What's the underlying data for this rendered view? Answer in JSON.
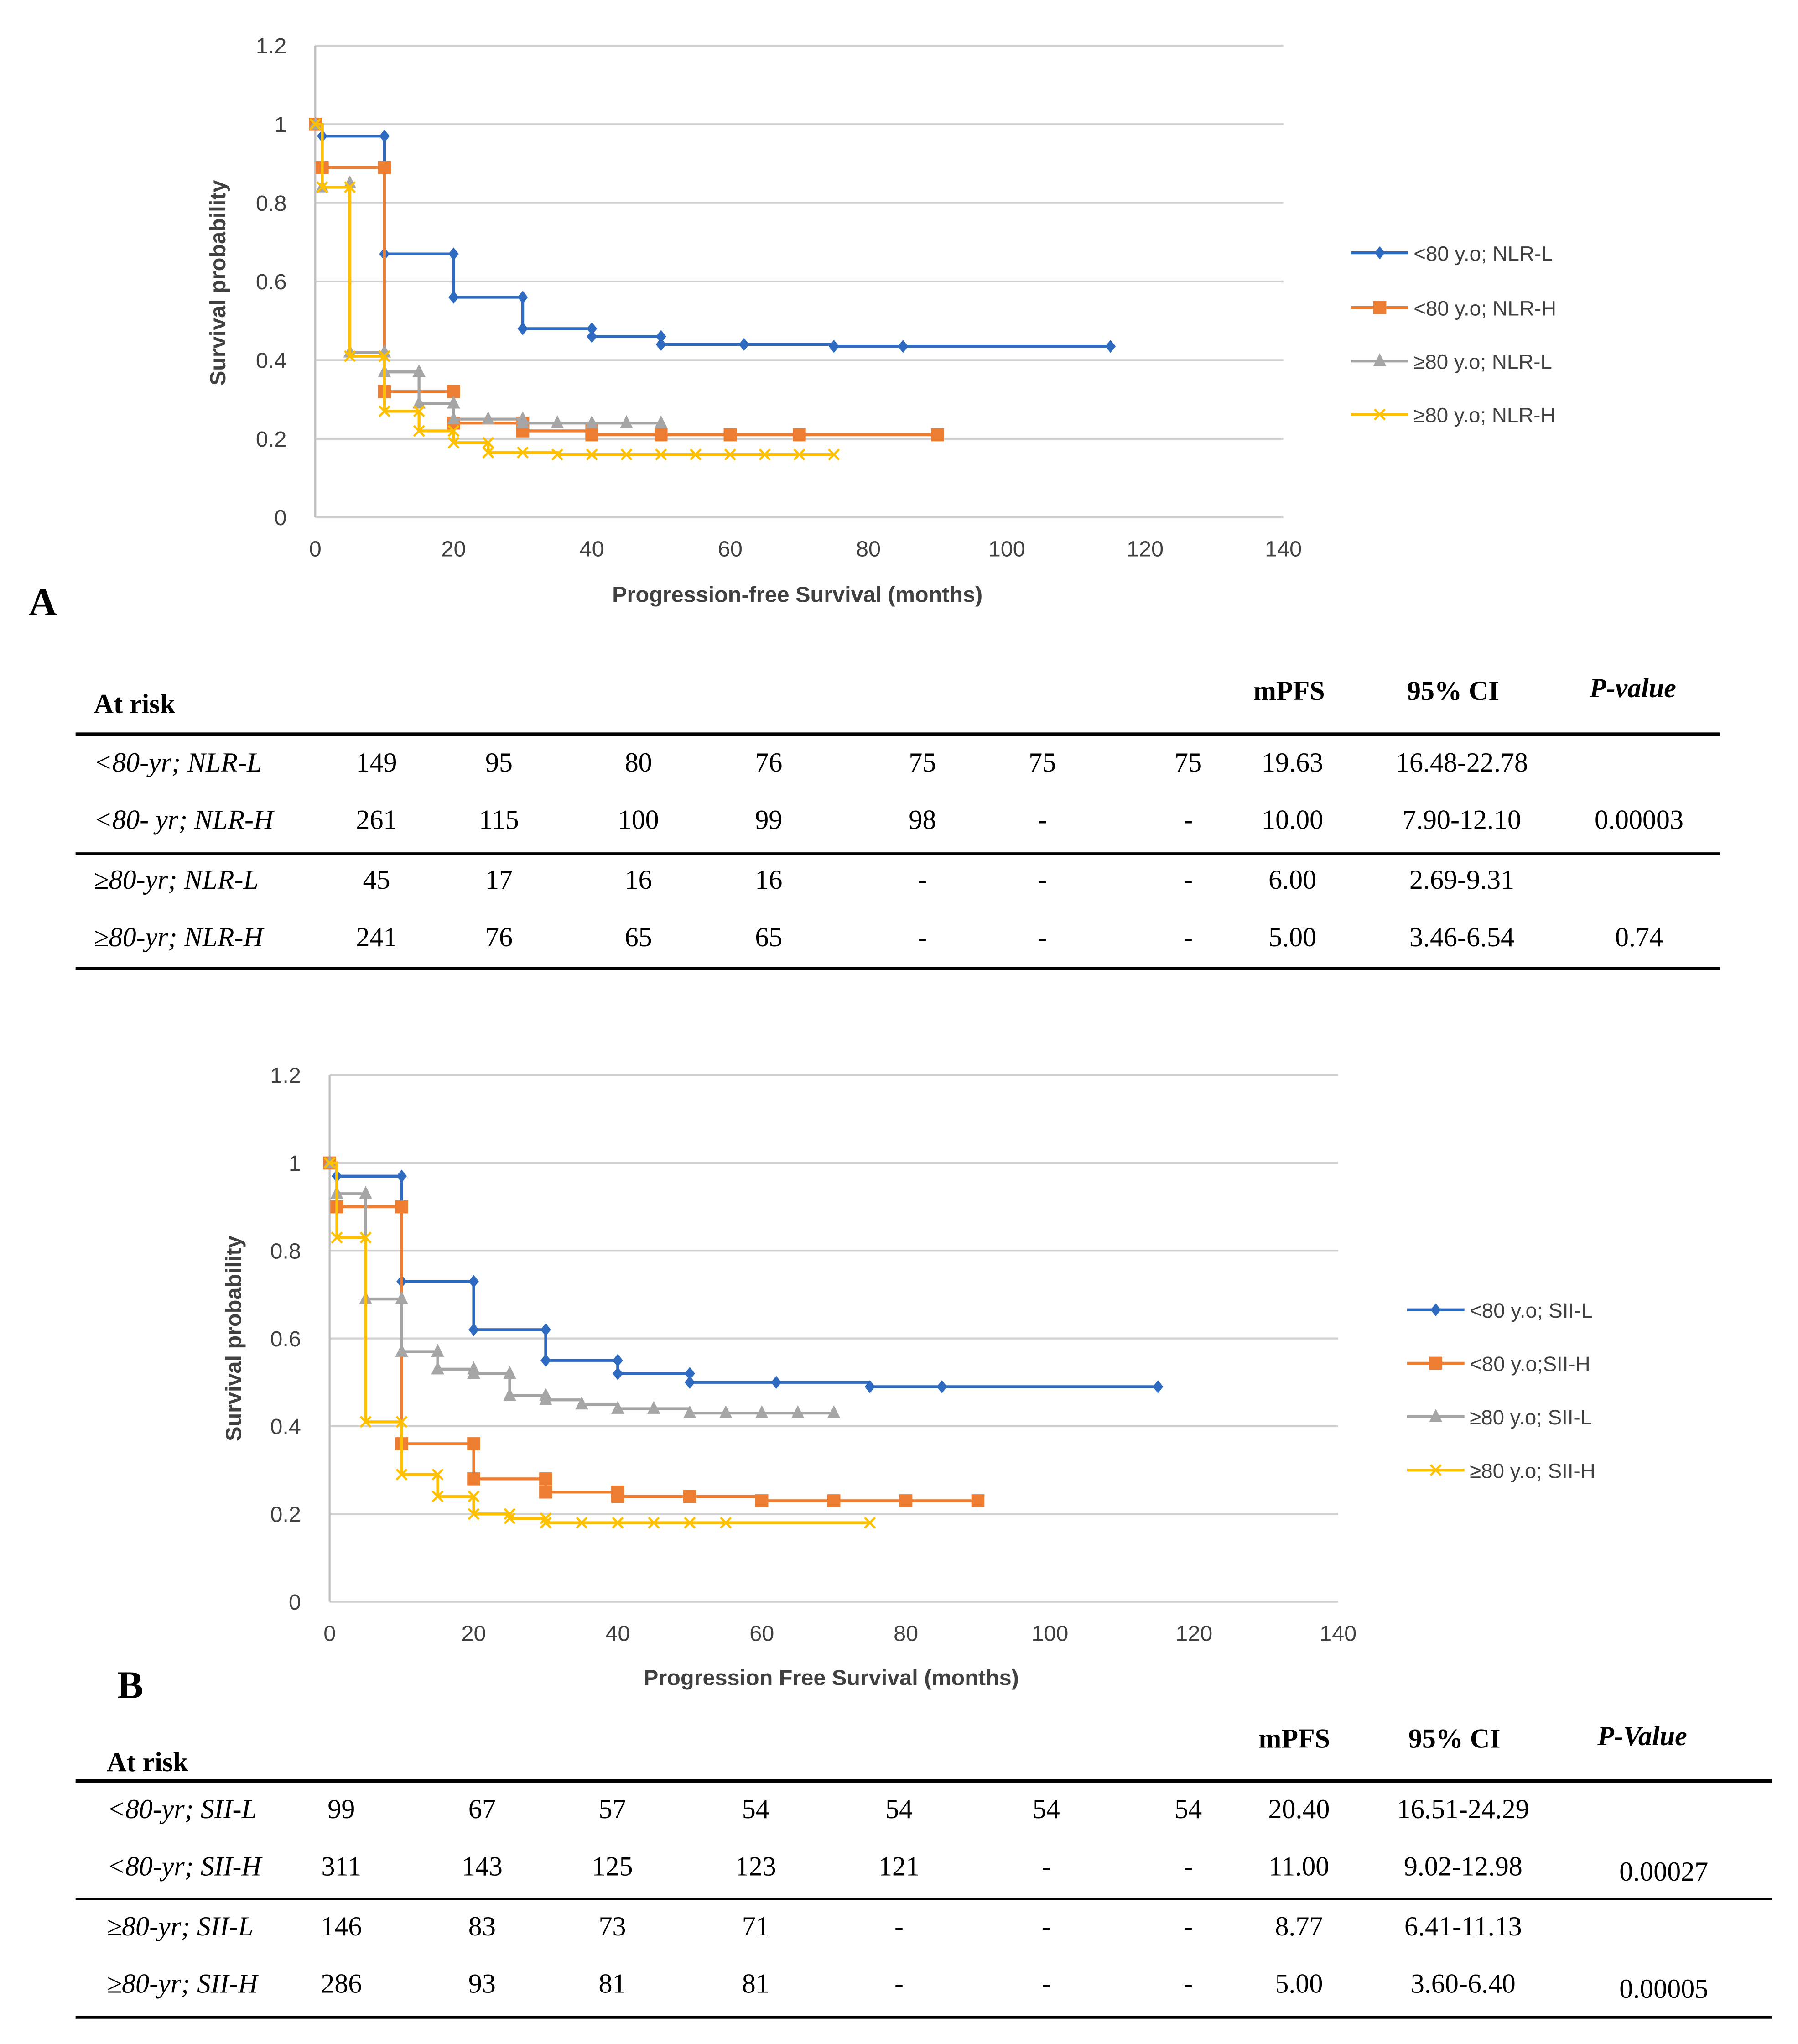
{
  "colors": {
    "s1": "#2E6BC0",
    "s2": "#ED7D31",
    "s3": "#A5A5A5",
    "s4": "#FFC000",
    "grid": "#D0D0D0"
  },
  "chart_data": [
    {
      "type": "line",
      "panel": "A",
      "title": "",
      "xlabel": "Progression-free Survival (months)",
      "ylabel": "Survival probability",
      "xlim": [
        0,
        140
      ],
      "ylim": [
        0,
        1.2
      ],
      "xticks": [
        "0",
        "20",
        "40",
        "60",
        "80",
        "100",
        "120",
        "140"
      ],
      "yticks": [
        "0",
        "0.2",
        "0.4",
        "0.6",
        "0.8",
        "1",
        "1.2"
      ],
      "grid": true,
      "legend_position": "right",
      "series": [
        {
          "name": "<80 y.o; NLR-L",
          "marker": "diamond",
          "points": [
            [
              0,
              1
            ],
            [
              1,
              0.97
            ],
            [
              10,
              0.97
            ],
            [
              10,
              0.67
            ],
            [
              20,
              0.67
            ],
            [
              20,
              0.56
            ],
            [
              30,
              0.56
            ],
            [
              30,
              0.48
            ],
            [
              40,
              0.48
            ],
            [
              40,
              0.46
            ],
            [
              50,
              0.46
            ],
            [
              50,
              0.44
            ],
            [
              62,
              0.44
            ],
            [
              75,
              0.435
            ],
            [
              85,
              0.435
            ],
            [
              115,
              0.435
            ]
          ]
        },
        {
          "name": "<80 y.o; NLR-H",
          "marker": "square",
          "points": [
            [
              0,
              1
            ],
            [
              1,
              0.89
            ],
            [
              10,
              0.89
            ],
            [
              10,
              0.32
            ],
            [
              20,
              0.32
            ],
            [
              20,
              0.24
            ],
            [
              30,
              0.24
            ],
            [
              30,
              0.22
            ],
            [
              40,
              0.22
            ],
            [
              40,
              0.21
            ],
            [
              50,
              0.21
            ],
            [
              60,
              0.21
            ],
            [
              70,
              0.21
            ],
            [
              90,
              0.21
            ]
          ]
        },
        {
          "name": "≥80 y.o; NLR-L",
          "marker": "triangle",
          "points": [
            [
              0,
              1
            ],
            [
              1,
              0.84
            ],
            [
              5,
              0.85
            ],
            [
              5,
              0.42
            ],
            [
              10,
              0.42
            ],
            [
              10,
              0.37
            ],
            [
              15,
              0.37
            ],
            [
              15,
              0.29
            ],
            [
              20,
              0.29
            ],
            [
              20,
              0.25
            ],
            [
              25,
              0.25
            ],
            [
              30,
              0.25
            ],
            [
              30,
              0.24
            ],
            [
              35,
              0.24
            ],
            [
              40,
              0.24
            ],
            [
              45,
              0.24
            ],
            [
              50,
              0.24
            ]
          ]
        },
        {
          "name": "≥80 y.o; NLR-H",
          "marker": "x",
          "points": [
            [
              0,
              1
            ],
            [
              1,
              0.84
            ],
            [
              5,
              0.84
            ],
            [
              5,
              0.41
            ],
            [
              10,
              0.41
            ],
            [
              10,
              0.27
            ],
            [
              15,
              0.27
            ],
            [
              15,
              0.22
            ],
            [
              20,
              0.22
            ],
            [
              20,
              0.19
            ],
            [
              25,
              0.19
            ],
            [
              25,
              0.165
            ],
            [
              30,
              0.165
            ],
            [
              35,
              0.16
            ],
            [
              40,
              0.16
            ],
            [
              45,
              0.16
            ],
            [
              50,
              0.16
            ],
            [
              55,
              0.16
            ],
            [
              60,
              0.16
            ],
            [
              65,
              0.16
            ],
            [
              70,
              0.16
            ],
            [
              75,
              0.16
            ]
          ]
        }
      ]
    },
    {
      "type": "line",
      "panel": "B",
      "title": "",
      "xlabel": "Progression Free Survival (months)",
      "ylabel": "Survival probability",
      "xlim": [
        0,
        140
      ],
      "ylim": [
        0,
        1.2
      ],
      "xticks": [
        "0",
        "20",
        "40",
        "60",
        "80",
        "100",
        "120",
        "140"
      ],
      "yticks": [
        "0",
        "0.2",
        "0.4",
        "0.6",
        "0.8",
        "1",
        "1.2"
      ],
      "grid": true,
      "legend_position": "right",
      "series": [
        {
          "name": "<80 y.o; SII-L",
          "marker": "diamond",
          "points": [
            [
              0,
              1
            ],
            [
              1,
              0.97
            ],
            [
              10,
              0.97
            ],
            [
              10,
              0.73
            ],
            [
              20,
              0.73
            ],
            [
              20,
              0.62
            ],
            [
              30,
              0.62
            ],
            [
              30,
              0.55
            ],
            [
              40,
              0.55
            ],
            [
              40,
              0.52
            ],
            [
              50,
              0.52
            ],
            [
              50,
              0.5
            ],
            [
              62,
              0.5
            ],
            [
              75,
              0.49
            ],
            [
              85,
              0.49
            ],
            [
              115,
              0.49
            ]
          ]
        },
        {
          "name": "<80 y.o;SII-H",
          "marker": "square",
          "points": [
            [
              0,
              1
            ],
            [
              1,
              0.9
            ],
            [
              10,
              0.9
            ],
            [
              10,
              0.36
            ],
            [
              20,
              0.36
            ],
            [
              20,
              0.28
            ],
            [
              30,
              0.28
            ],
            [
              30,
              0.25
            ],
            [
              40,
              0.25
            ],
            [
              40,
              0.24
            ],
            [
              50,
              0.24
            ],
            [
              60,
              0.23
            ],
            [
              70,
              0.23
            ],
            [
              80,
              0.23
            ],
            [
              90,
              0.23
            ]
          ]
        },
        {
          "name": "≥80 y.o; SII-L",
          "marker": "triangle",
          "points": [
            [
              0,
              1
            ],
            [
              1,
              0.93
            ],
            [
              5,
              0.93
            ],
            [
              5,
              0.69
            ],
            [
              10,
              0.69
            ],
            [
              10,
              0.57
            ],
            [
              15,
              0.57
            ],
            [
              15,
              0.53
            ],
            [
              20,
              0.53
            ],
            [
              20,
              0.52
            ],
            [
              25,
              0.52
            ],
            [
              25,
              0.47
            ],
            [
              30,
              0.47
            ],
            [
              30,
              0.46
            ],
            [
              35,
              0.45
            ],
            [
              40,
              0.44
            ],
            [
              45,
              0.44
            ],
            [
              50,
              0.43
            ],
            [
              55,
              0.43
            ],
            [
              60,
              0.43
            ],
            [
              65,
              0.43
            ],
            [
              70,
              0.43
            ]
          ]
        },
        {
          "name": "≥80 y.o; SII-H",
          "marker": "x",
          "points": [
            [
              0,
              1
            ],
            [
              1,
              0.83
            ],
            [
              5,
              0.83
            ],
            [
              5,
              0.41
            ],
            [
              10,
              0.41
            ],
            [
              10,
              0.29
            ],
            [
              15,
              0.29
            ],
            [
              15,
              0.24
            ],
            [
              20,
              0.24
            ],
            [
              20,
              0.2
            ],
            [
              25,
              0.2
            ],
            [
              25,
              0.19
            ],
            [
              30,
              0.19
            ],
            [
              30,
              0.18
            ],
            [
              35,
              0.18
            ],
            [
              40,
              0.18
            ],
            [
              45,
              0.18
            ],
            [
              50,
              0.18
            ],
            [
              55,
              0.18
            ],
            [
              75,
              0.18
            ]
          ]
        }
      ]
    }
  ],
  "tables": [
    {
      "header": {
        "at_risk": "At risk",
        "mpfs": "mPFS",
        "ci": "95% CI",
        "p": "P-value"
      },
      "rows": [
        {
          "label": "<80-yr; NLR-L",
          "cells": [
            "149",
            "95",
            "80",
            "76",
            "75",
            "75",
            "75",
            "19.63",
            "16.48-22.78",
            ""
          ]
        },
        {
          "label": "<80- yr; NLR-H",
          "cells": [
            "261",
            "115",
            "100",
            "99",
            "98",
            "-",
            "-",
            "10.00",
            "7.90-12.10",
            "0.00003"
          ]
        },
        {
          "label": "≥80-yr; NLR-L",
          "cells": [
            "45",
            "17",
            "16",
            "16",
            "-",
            "-",
            "-",
            "6.00",
            "2.69-9.31",
            ""
          ]
        },
        {
          "label": "≥80-yr; NLR-H",
          "cells": [
            "241",
            "76",
            "65",
            "65",
            "-",
            "-",
            "-",
            "5.00",
            "3.46-6.54",
            "0.74"
          ]
        }
      ]
    },
    {
      "header": {
        "at_risk": "At risk",
        "mpfs": "mPFS",
        "ci": "95% CI",
        "p": "P-Value"
      },
      "rows": [
        {
          "label": "<80-yr; SII-L",
          "cells": [
            "99",
            "67",
            "57",
            "54",
            "54",
            "54",
            "54",
            "20.40",
            "16.51-24.29",
            ""
          ]
        },
        {
          "label": "<80-yr; SII-H",
          "cells": [
            "311",
            "143",
            "125",
            "123",
            "121",
            "-",
            "-",
            "11.00",
            "9.02-12.98",
            "0.00027"
          ]
        },
        {
          "label": "≥80-yr; SII-L",
          "cells": [
            "146",
            "83",
            "73",
            "71",
            "-",
            "-",
            "-",
            "8.77",
            "6.41-11.13",
            ""
          ]
        },
        {
          "label": "≥80-yr; SII-H",
          "cells": [
            "286",
            "93",
            "81",
            "81",
            "-",
            "-",
            "-",
            "5.00",
            "3.60-6.40",
            "0.00005"
          ]
        }
      ]
    }
  ]
}
